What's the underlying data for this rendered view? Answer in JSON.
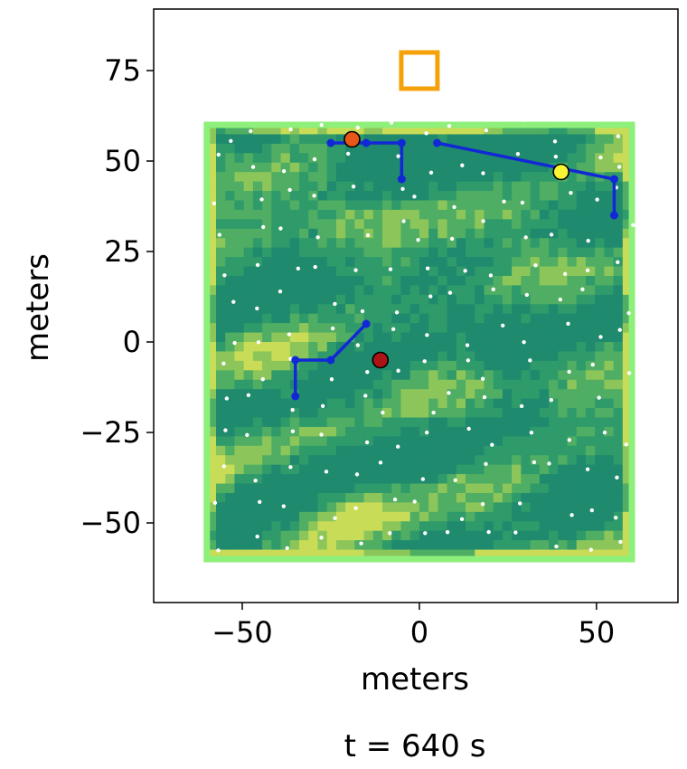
{
  "chart_data": {
    "type": "scatter",
    "title": "",
    "caption": "t = 640 s",
    "xlabel": "meters",
    "ylabel": "meters",
    "xlim": [
      -75,
      73
    ],
    "ylim": [
      -72,
      92
    ],
    "xticks": [
      -50,
      0,
      50
    ],
    "yticks": [
      -50,
      -25,
      0,
      25,
      50,
      75
    ],
    "tick_labels_x": [
      "−50",
      "0",
      "50"
    ],
    "tick_labels_y": [
      "−50",
      "−25",
      "0",
      "25",
      "50",
      "75"
    ],
    "grid": false,
    "field": {
      "x_range": [
        -60,
        60
      ],
      "y_range": [
        -60,
        60
      ],
      "border_color": "#8ef07a",
      "colors": [
        "#1f8a6e",
        "#2f9a6a",
        "#4fae63",
        "#8cc65a",
        "#c8dc57"
      ]
    },
    "target_marker": {
      "x": 0,
      "y": 75,
      "shape": "square",
      "color": "#f5a10a"
    },
    "paths": [
      {
        "color": "#1228d6",
        "points": [
          [
            -25,
            55
          ],
          [
            -15,
            55
          ],
          [
            -5,
            55
          ],
          [
            -5,
            45
          ]
        ]
      },
      {
        "color": "#1228d6",
        "points": [
          [
            5,
            55
          ],
          [
            55,
            45
          ],
          [
            55,
            35
          ]
        ]
      },
      {
        "color": "#1228d6",
        "points": [
          [
            -15,
            5
          ],
          [
            -25,
            -5
          ],
          [
            -35,
            -5
          ],
          [
            -35,
            -15
          ]
        ]
      }
    ],
    "agents": [
      {
        "x": -19,
        "y": 56,
        "color": "#e8561a"
      },
      {
        "x": 40,
        "y": 47,
        "color": "#f8f535"
      },
      {
        "x": -11,
        "y": -5,
        "color": "#aa1414"
      }
    ],
    "sensor_grid_spacing": 9.5,
    "sensor_color": "#ffffff"
  }
}
